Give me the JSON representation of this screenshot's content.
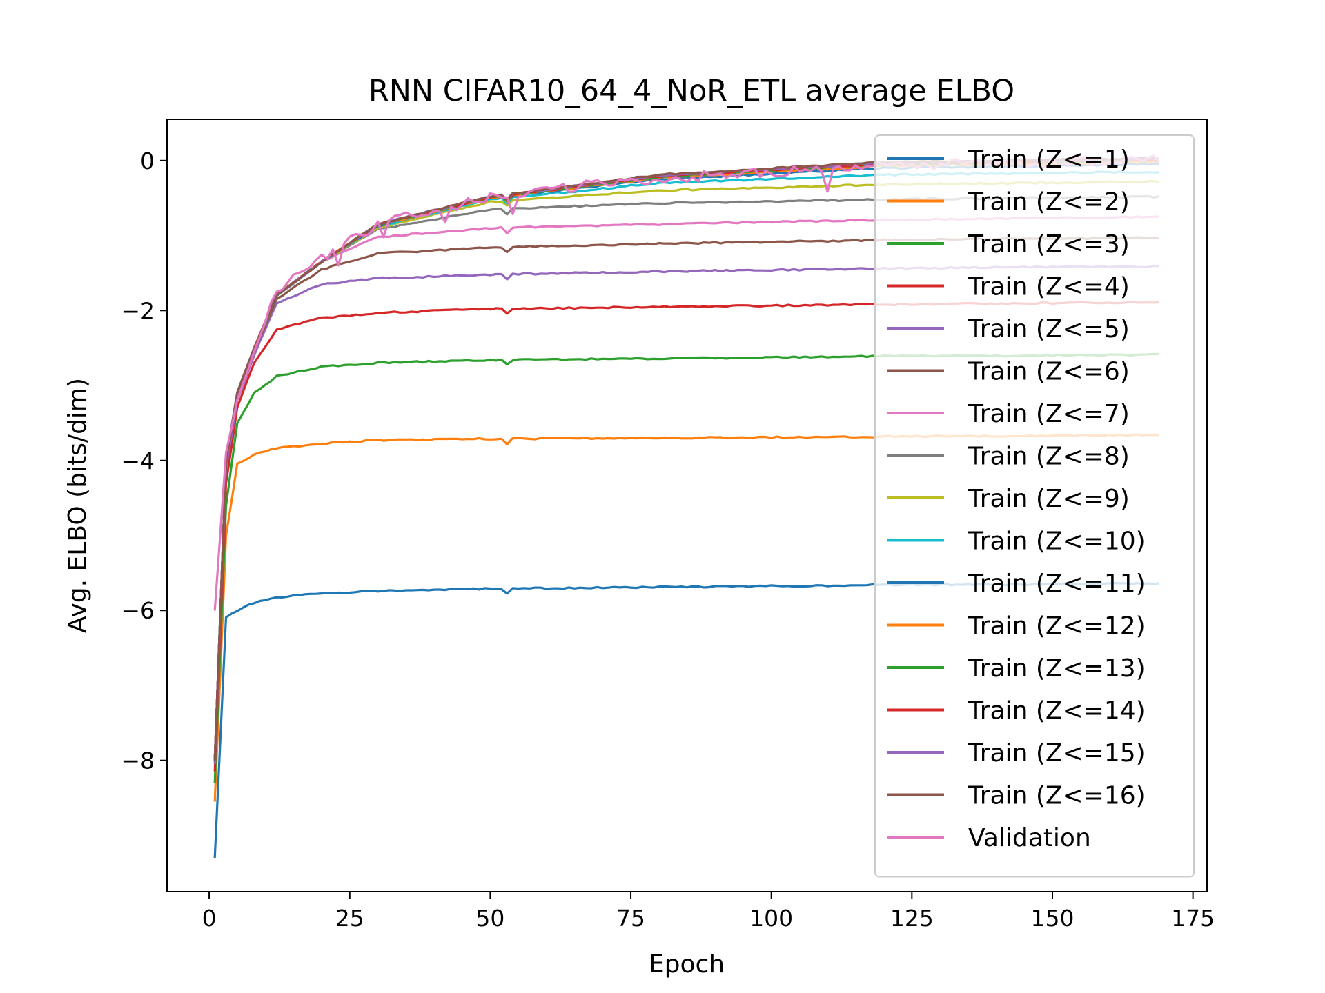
{
  "chart_data": {
    "type": "line",
    "title": "RNN CIFAR10_64_4_NoR_ETL average ELBO",
    "xlabel": "Epoch",
    "ylabel": "Avg. ELBO (bits/dim)",
    "xlim": [
      -7.5,
      177.5
    ],
    "ylim": [
      -9.75,
      0.55
    ],
    "xticks": [
      0,
      25,
      50,
      75,
      100,
      125,
      150,
      175
    ],
    "yticks": [
      -8,
      -6,
      -4,
      -2,
      0
    ],
    "ytick_labels": [
      "−8",
      "−6",
      "−4",
      "−2",
      "0"
    ],
    "legend_position": "upper right",
    "grid": false,
    "x_range": [
      1,
      169
    ],
    "series": [
      {
        "name": "Train (Z<=1)",
        "color": "#1f77b4",
        "start": -9.3,
        "curve": [
          [
            1,
            -9.3
          ],
          [
            3,
            -6.1
          ],
          [
            5,
            -6.0
          ],
          [
            8,
            -5.9
          ],
          [
            12,
            -5.83
          ],
          [
            20,
            -5.77
          ],
          [
            30,
            -5.74
          ],
          [
            50,
            -5.71
          ],
          [
            80,
            -5.69
          ],
          [
            120,
            -5.66
          ],
          [
            169,
            -5.64
          ]
        ]
      },
      {
        "name": "Train (Z<=2)",
        "color": "#ff7f0e",
        "start": -8.55,
        "curve": [
          [
            1,
            -8.55
          ],
          [
            3,
            -5.0
          ],
          [
            5,
            -4.05
          ],
          [
            8,
            -3.92
          ],
          [
            12,
            -3.84
          ],
          [
            20,
            -3.77
          ],
          [
            30,
            -3.73
          ],
          [
            50,
            -3.71
          ],
          [
            80,
            -3.7
          ],
          [
            120,
            -3.68
          ],
          [
            169,
            -3.66
          ]
        ]
      },
      {
        "name": "Train (Z<=3)",
        "color": "#2ca02c",
        "start": -8.3,
        "curve": [
          [
            1,
            -8.3
          ],
          [
            3,
            -4.6
          ],
          [
            5,
            -3.5
          ],
          [
            8,
            -3.1
          ],
          [
            12,
            -2.88
          ],
          [
            20,
            -2.75
          ],
          [
            30,
            -2.7
          ],
          [
            50,
            -2.66
          ],
          [
            80,
            -2.64
          ],
          [
            120,
            -2.61
          ],
          [
            169,
            -2.59
          ]
        ]
      },
      {
        "name": "Train (Z<=4)",
        "color": "#d62728",
        "start": -8.15,
        "curve": [
          [
            1,
            -8.15
          ],
          [
            3,
            -4.3
          ],
          [
            5,
            -3.3
          ],
          [
            8,
            -2.7
          ],
          [
            12,
            -2.25
          ],
          [
            20,
            -2.1
          ],
          [
            30,
            -2.03
          ],
          [
            50,
            -1.98
          ],
          [
            80,
            -1.95
          ],
          [
            120,
            -1.92
          ],
          [
            169,
            -1.89
          ]
        ]
      },
      {
        "name": "Train (Z<=5)",
        "color": "#9467bd",
        "start": -8.05,
        "curve": [
          [
            1,
            -8.05
          ],
          [
            3,
            -4.1
          ],
          [
            5,
            -3.2
          ],
          [
            8,
            -2.6
          ],
          [
            12,
            -1.9
          ],
          [
            20,
            -1.65
          ],
          [
            30,
            -1.57
          ],
          [
            50,
            -1.52
          ],
          [
            80,
            -1.48
          ],
          [
            120,
            -1.44
          ],
          [
            169,
            -1.41
          ]
        ]
      },
      {
        "name": "Train (Z<=6)",
        "color": "#8c564b",
        "start": -8.0,
        "curve": [
          [
            1,
            -8.0
          ],
          [
            3,
            -4.0
          ],
          [
            5,
            -3.15
          ],
          [
            8,
            -2.55
          ],
          [
            12,
            -1.85
          ],
          [
            20,
            -1.45
          ],
          [
            30,
            -1.24
          ],
          [
            50,
            -1.16
          ],
          [
            80,
            -1.11
          ],
          [
            120,
            -1.06
          ],
          [
            169,
            -1.03
          ]
        ]
      },
      {
        "name": "Train (Z<=7)",
        "color": "#e377c2",
        "start": -8.0,
        "curve": [
          [
            1,
            -8.0
          ],
          [
            3,
            -4.0
          ],
          [
            5,
            -3.1
          ],
          [
            8,
            -2.5
          ],
          [
            12,
            -1.8
          ],
          [
            20,
            -1.35
          ],
          [
            30,
            -1.02
          ],
          [
            50,
            -0.9
          ],
          [
            80,
            -0.85
          ],
          [
            120,
            -0.79
          ],
          [
            169,
            -0.75
          ]
        ]
      },
      {
        "name": "Train (Z<=8)",
        "color": "#7f7f7f",
        "start": -8.0,
        "curve": [
          [
            1,
            -8.0
          ],
          [
            3,
            -4.0
          ],
          [
            5,
            -3.1
          ],
          [
            8,
            -2.5
          ],
          [
            12,
            -1.8
          ],
          [
            20,
            -1.35
          ],
          [
            30,
            -0.92
          ],
          [
            50,
            -0.65
          ],
          [
            80,
            -0.57
          ],
          [
            120,
            -0.52
          ],
          [
            169,
            -0.48
          ]
        ]
      },
      {
        "name": "Train (Z<=9)",
        "color": "#bcbd22",
        "start": -8.0,
        "curve": [
          [
            1,
            -8.0
          ],
          [
            3,
            -4.0
          ],
          [
            5,
            -3.1
          ],
          [
            8,
            -2.5
          ],
          [
            12,
            -1.8
          ],
          [
            20,
            -1.35
          ],
          [
            30,
            -0.9
          ],
          [
            50,
            -0.55
          ],
          [
            80,
            -0.4
          ],
          [
            120,
            -0.32
          ],
          [
            169,
            -0.28
          ]
        ]
      },
      {
        "name": "Train (Z<=10)",
        "color": "#17becf",
        "start": -8.0,
        "curve": [
          [
            1,
            -8.0
          ],
          [
            3,
            -4.0
          ],
          [
            5,
            -3.1
          ],
          [
            8,
            -2.5
          ],
          [
            12,
            -1.8
          ],
          [
            20,
            -1.35
          ],
          [
            30,
            -0.88
          ],
          [
            50,
            -0.52
          ],
          [
            80,
            -0.3
          ],
          [
            120,
            -0.19
          ],
          [
            169,
            -0.15
          ]
        ]
      },
      {
        "name": "Train (Z<=11)",
        "color": "#1f77b4",
        "start": -8.0,
        "curve": [
          [
            1,
            -8.0
          ],
          [
            3,
            -4.0
          ],
          [
            5,
            -3.1
          ],
          [
            8,
            -2.5
          ],
          [
            12,
            -1.8
          ],
          [
            20,
            -1.35
          ],
          [
            30,
            -0.87
          ],
          [
            50,
            -0.5
          ],
          [
            80,
            -0.25
          ],
          [
            120,
            -0.1
          ],
          [
            169,
            -0.05
          ]
        ]
      },
      {
        "name": "Train (Z<=12)",
        "color": "#ff7f0e",
        "start": -8.0,
        "curve": [
          [
            1,
            -8.0
          ],
          [
            3,
            -4.0
          ],
          [
            5,
            -3.1
          ],
          [
            8,
            -2.5
          ],
          [
            12,
            -1.8
          ],
          [
            20,
            -1.35
          ],
          [
            30,
            -0.86
          ],
          [
            50,
            -0.5
          ],
          [
            80,
            -0.23
          ],
          [
            120,
            -0.07
          ],
          [
            169,
            -0.02
          ]
        ]
      },
      {
        "name": "Train (Z<=13)",
        "color": "#2ca02c",
        "start": -8.0,
        "curve": [
          [
            1,
            -8.0
          ],
          [
            3,
            -4.0
          ],
          [
            5,
            -3.1
          ],
          [
            8,
            -2.5
          ],
          [
            12,
            -1.8
          ],
          [
            20,
            -1.35
          ],
          [
            30,
            -0.86
          ],
          [
            50,
            -0.49
          ],
          [
            80,
            -0.22
          ],
          [
            120,
            -0.05
          ],
          [
            169,
            0.0
          ]
        ]
      },
      {
        "name": "Train (Z<=14)",
        "color": "#d62728",
        "start": -8.0,
        "curve": [
          [
            1,
            -8.0
          ],
          [
            3,
            -4.0
          ],
          [
            5,
            -3.1
          ],
          [
            8,
            -2.5
          ],
          [
            12,
            -1.8
          ],
          [
            20,
            -1.35
          ],
          [
            30,
            -0.85
          ],
          [
            50,
            -0.49
          ],
          [
            80,
            -0.21
          ],
          [
            120,
            -0.04
          ],
          [
            169,
            0.01
          ]
        ]
      },
      {
        "name": "Train (Z<=15)",
        "color": "#9467bd",
        "start": -8.0,
        "curve": [
          [
            1,
            -8.0
          ],
          [
            3,
            -4.0
          ],
          [
            5,
            -3.1
          ],
          [
            8,
            -2.5
          ],
          [
            12,
            -1.8
          ],
          [
            20,
            -1.35
          ],
          [
            30,
            -0.85
          ],
          [
            50,
            -0.48
          ],
          [
            80,
            -0.2
          ],
          [
            120,
            -0.03
          ],
          [
            169,
            0.02
          ]
        ]
      },
      {
        "name": "Train (Z<=16)",
        "color": "#8c564b",
        "start": -8.0,
        "curve": [
          [
            1,
            -8.0
          ],
          [
            3,
            -4.0
          ],
          [
            5,
            -3.1
          ],
          [
            8,
            -2.5
          ],
          [
            12,
            -1.8
          ],
          [
            20,
            -1.35
          ],
          [
            30,
            -0.85
          ],
          [
            50,
            -0.48
          ],
          [
            80,
            -0.19
          ],
          [
            120,
            -0.02
          ],
          [
            169,
            0.03
          ]
        ]
      },
      {
        "name": "Validation",
        "color": "#e377c2",
        "start": -6.0,
        "curve": [
          [
            1,
            -6.0
          ],
          [
            3,
            -3.9
          ],
          [
            5,
            -3.2
          ],
          [
            8,
            -2.55
          ],
          [
            12,
            -1.75
          ],
          [
            20,
            -1.3
          ],
          [
            30,
            -0.85
          ],
          [
            50,
            -0.5
          ],
          [
            70,
            -0.3
          ],
          [
            90,
            -0.2
          ],
          [
            110,
            -0.12
          ],
          [
            130,
            -0.05
          ],
          [
            169,
            0.0
          ]
        ],
        "noisy": true
      }
    ],
    "dip_epoch": 53
  }
}
